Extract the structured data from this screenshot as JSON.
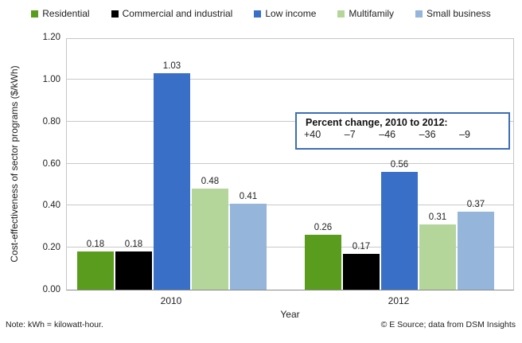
{
  "chart_data": {
    "type": "bar",
    "categories": [
      "2010",
      "2012"
    ],
    "series": [
      {
        "name": "Residential",
        "color": "#5a9c1d",
        "values": [
          0.18,
          0.26
        ]
      },
      {
        "name": "Commercial and industrial",
        "color": "#000000",
        "values": [
          0.18,
          0.17
        ]
      },
      {
        "name": "Low income",
        "color": "#3a6fc7",
        "values": [
          1.03,
          0.56
        ]
      },
      {
        "name": "Multifamily",
        "color": "#b5d69b",
        "values": [
          0.48,
          0.31
        ]
      },
      {
        "name": "Small business",
        "color": "#95b5db",
        "values": [
          0.41,
          0.37
        ]
      }
    ],
    "xlabel": "Year",
    "ylabel": "Cost-effectiveness of sector programs ($/kWh)",
    "ylim": [
      0,
      1.2
    ],
    "ytick_step": 0.2,
    "ytick_labels": [
      "0.00",
      "0.20",
      "0.40",
      "0.60",
      "0.80",
      "1.00",
      "1.20"
    ],
    "grid": true,
    "legend_position": "top",
    "value_label_decimals": 2
  },
  "annotation": {
    "title": "Percent change, 2010 to 2012:",
    "values": [
      "+40",
      "–7",
      "–46",
      "–36",
      "–9"
    ],
    "border_color": "#3c6eb5"
  },
  "footer": {
    "note": "Note: kWh = kilowatt-hour.",
    "credit": "© E Source; data from DSM Insights"
  }
}
